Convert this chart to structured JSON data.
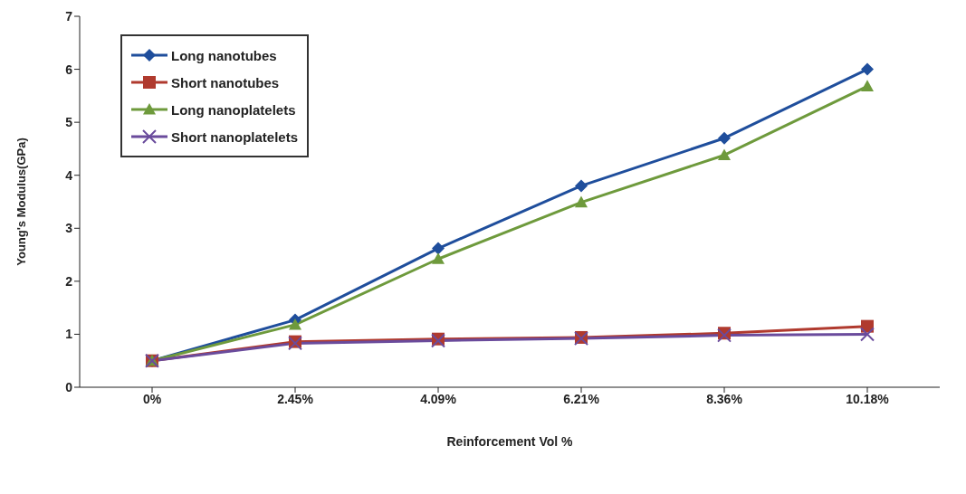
{
  "chart_data": {
    "type": "line",
    "xlabel": "Reinforcement Vol %",
    "ylabel": "Young's Modulus(GPa)",
    "categories": [
      "0%",
      "2.45%",
      "4.09%",
      "6.21%",
      "8.36%",
      "10.18%"
    ],
    "series": [
      {
        "name": "Long nanotubes",
        "color": "#1f4e9c",
        "marker": "diamond",
        "values": [
          0.5,
          1.27,
          2.62,
          3.8,
          4.7,
          6.0
        ]
      },
      {
        "name": "Short nanotubes",
        "color": "#b03a2e",
        "marker": "square",
        "values": [
          0.5,
          0.86,
          0.91,
          0.94,
          1.02,
          1.15
        ]
      },
      {
        "name": "Long nanoplatelets",
        "color": "#6e9a3c",
        "marker": "triangle",
        "values": [
          0.5,
          1.18,
          2.42,
          3.49,
          4.38,
          5.68
        ]
      },
      {
        "name": "Short nanoplatelets",
        "color": "#6a4b9c",
        "marker": "cross",
        "values": [
          0.5,
          0.83,
          0.88,
          0.92,
          0.98,
          1.0
        ]
      }
    ],
    "ylim": [
      0,
      7
    ],
    "yticks": [
      0,
      1,
      2,
      3,
      4,
      5,
      6,
      7
    ],
    "grid": false,
    "legend": "top left",
    "line_style": "solid"
  }
}
